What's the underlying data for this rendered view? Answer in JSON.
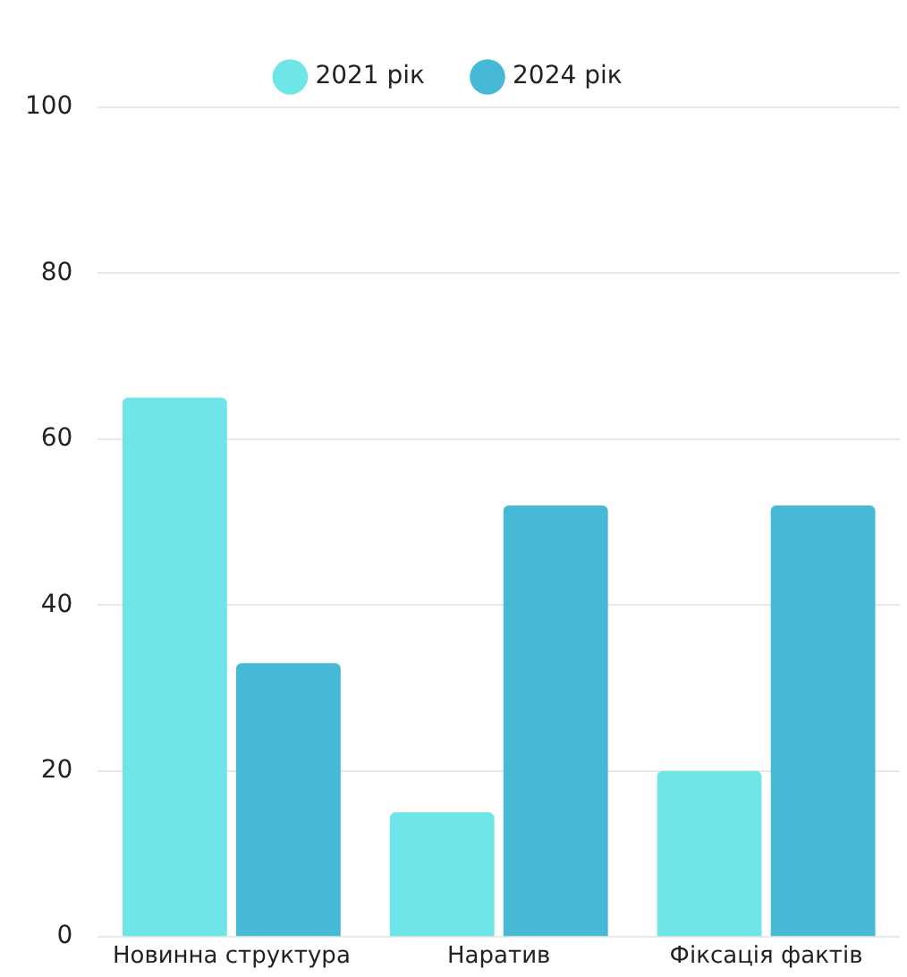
{
  "chart_data": {
    "type": "bar",
    "categories": [
      "Новинна структура",
      "Наратив",
      "Фіксація фактів"
    ],
    "series": [
      {
        "name": "2021 рік",
        "color": "#6ee6e8",
        "values": [
          65,
          15,
          20
        ]
      },
      {
        "name": "2024 рік",
        "color": "#45b9d6",
        "values": [
          33,
          52,
          52
        ]
      }
    ],
    "ylim": [
      0,
      100
    ],
    "yticks": [
      0,
      20,
      40,
      60,
      80,
      100
    ],
    "grid": "y",
    "legend": "top"
  }
}
